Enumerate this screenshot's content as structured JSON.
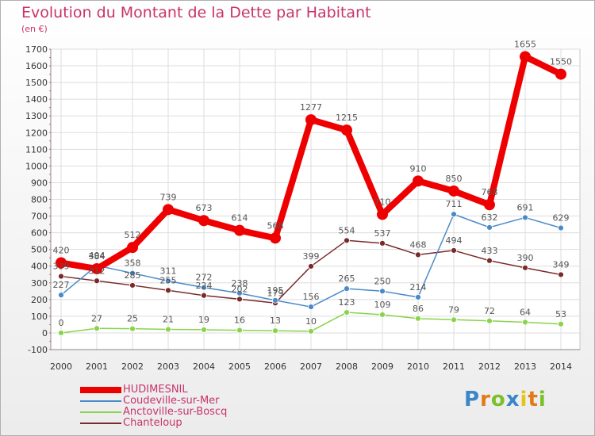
{
  "chart_data": {
    "type": "line",
    "title": "Evolution du Montant de la Dette par Habitant",
    "subtitle": "(en €)",
    "x": [
      "2000",
      "2001",
      "2002",
      "2003",
      "2004",
      "2005",
      "2006",
      "2007",
      "2008",
      "2009",
      "2010",
      "2011",
      "2012",
      "2013",
      "2014"
    ],
    "ylim": [
      -100,
      1700
    ],
    "yticks": [
      -100,
      0,
      100,
      200,
      300,
      400,
      500,
      600,
      700,
      800,
      900,
      1000,
      1100,
      1200,
      1300,
      1400,
      1500,
      1600,
      1700
    ],
    "grid": true,
    "legend_position": "bottom-left",
    "series": [
      {
        "name": "HUDIMESNIL",
        "color": "#ee0000",
        "values": [
          420,
          384,
          512,
          739,
          673,
          614,
          568,
          1277,
          1215,
          710,
          910,
          850,
          768,
          1655,
          1550
        ],
        "labels": [
          "420",
          "384",
          "512",
          "739",
          "673",
          "614",
          "568",
          "1277",
          "1215",
          "710",
          "910",
          "850",
          "768",
          "1655",
          "1550"
        ]
      },
      {
        "name": "Coudeville-sur-Mer",
        "color": "#4a8ac8",
        "values": [
          227,
          404,
          358,
          311,
          272,
          238,
          195,
          156,
          265,
          250,
          214,
          711,
          632,
          691,
          629
        ],
        "labels": [
          "227",
          "404",
          "358",
          "311",
          "272",
          "238",
          "195",
          "156",
          "265",
          "250",
          "214",
          "711",
          "632",
          "691",
          "629"
        ]
      },
      {
        "name": "Anctoville-sur-Boscq",
        "color": "#88d44a",
        "values": [
          0,
          27,
          25,
          21,
          19,
          16,
          13,
          10,
          123,
          109,
          86,
          79,
          72,
          64,
          53
        ],
        "labels": [
          "0",
          "27",
          "25",
          "21",
          "19",
          "16",
          "13",
          "10",
          "123",
          "109",
          "86",
          "79",
          "72",
          "64",
          "53"
        ]
      },
      {
        "name": "Chanteloup",
        "color": "#7a2a2a",
        "values": [
          339,
          312,
          285,
          255,
          224,
          202,
          179,
          399,
          554,
          537,
          468,
          494,
          433,
          390,
          349
        ],
        "labels": [
          "339",
          "312",
          "285",
          "255",
          "224",
          "202",
          "179",
          "399",
          "554",
          "537",
          "468",
          "494",
          "433",
          "390",
          "349"
        ]
      }
    ]
  },
  "logo": {
    "letters": [
      "P",
      "r",
      "o",
      "x",
      "i",
      "t",
      "i"
    ]
  }
}
